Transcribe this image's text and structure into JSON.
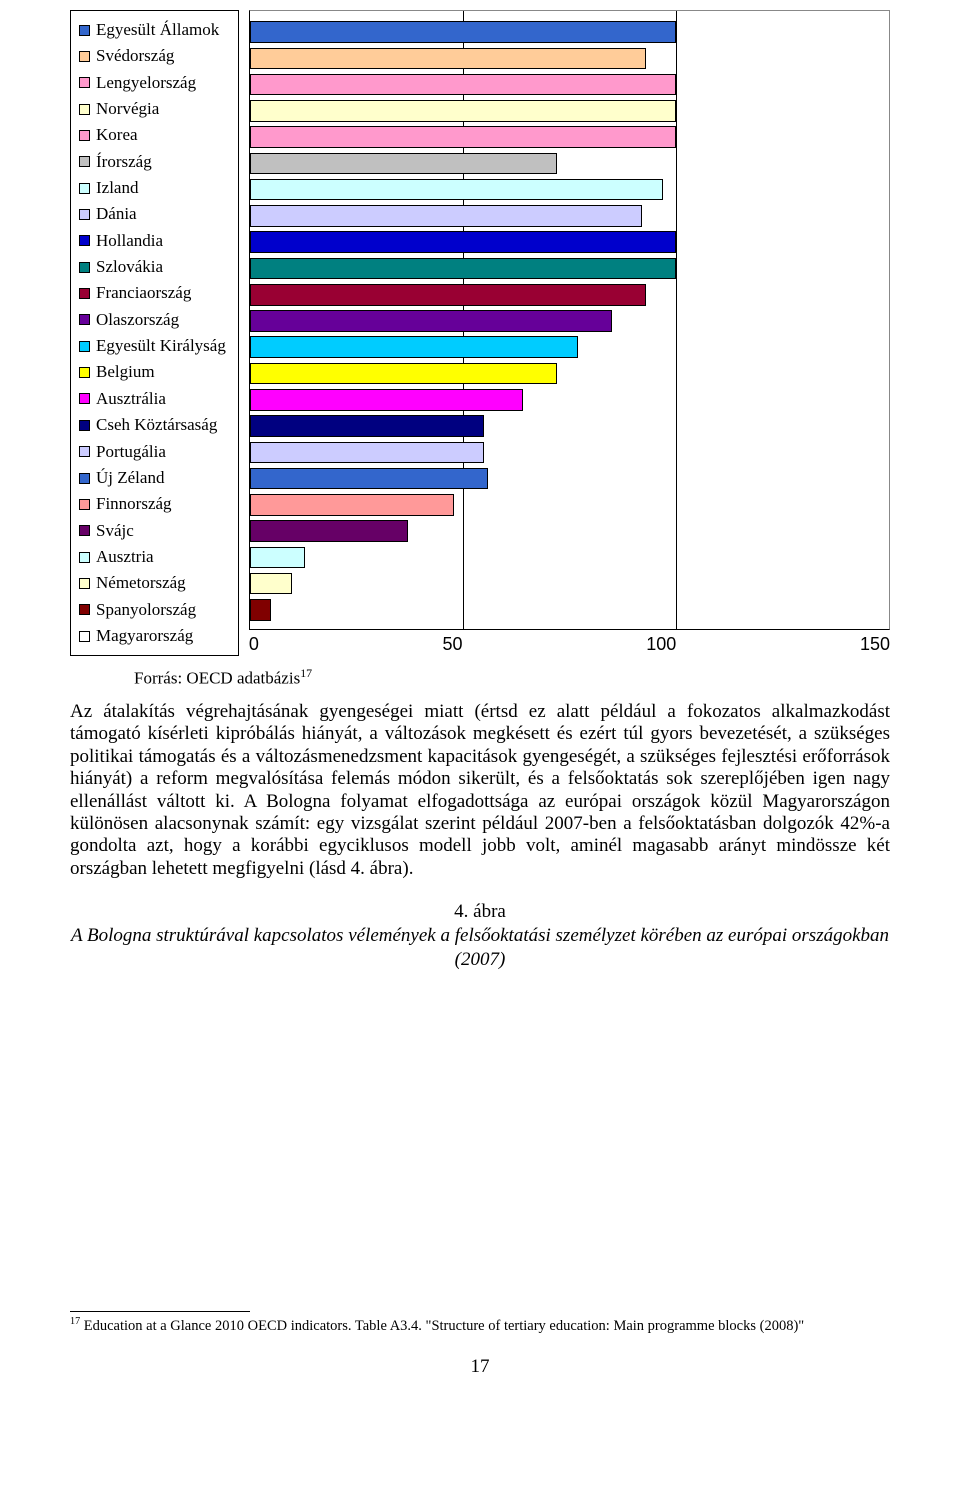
{
  "chart": {
    "type": "bar-horizontal",
    "xmin": 0,
    "xmax": 150,
    "ticks": [
      "0",
      "50",
      "100",
      "150"
    ],
    "grid_color": "#000000",
    "background": "#ffffff",
    "bar_border": "#000000",
    "legend_items": [
      {
        "label": "Egyesült Államok",
        "color": "#3366cc"
      },
      {
        "label": "Svédország",
        "color": "#ffcc99"
      },
      {
        "label": "Lengyelország",
        "color": "#ff99cc"
      },
      {
        "label": "Norvégia",
        "color": "#ffffcc"
      },
      {
        "label": "Korea",
        "color": "#ff99cc"
      },
      {
        "label": "Írország",
        "color": "#c0c0c0"
      },
      {
        "label": "Izland",
        "color": "#ccffff"
      },
      {
        "label": "Dánia",
        "color": "#ccccff"
      },
      {
        "label": "Hollandia",
        "color": "#0000cc"
      },
      {
        "label": "Szlovákia",
        "color": "#008080"
      },
      {
        "label": "Franciaország",
        "color": "#990033"
      },
      {
        "label": "Olaszország",
        "color": "#660099"
      },
      {
        "label": "Egyesült Királyság",
        "color": "#00ccff"
      },
      {
        "label": "Belgium",
        "color": "#ffff00"
      },
      {
        "label": "Ausztrália",
        "color": "#ff00ff"
      },
      {
        "label": "Cseh Köztársaság",
        "color": "#000080"
      },
      {
        "label": "Portugália",
        "color": "#ccccff"
      },
      {
        "label": "Új Zéland",
        "color": "#3366cc"
      },
      {
        "label": "Finnország",
        "color": "#ff9999"
      },
      {
        "label": "Svájc",
        "color": "#660066"
      },
      {
        "label": "Ausztria",
        "color": "#ccffff"
      },
      {
        "label": "Németország",
        "color": "#ffffcc"
      },
      {
        "label": "Spanyolország",
        "color": "#800000"
      },
      {
        "label": "Magyarország",
        "color": null
      }
    ],
    "bars": [
      {
        "value": 100,
        "color": "#3366cc"
      },
      {
        "value": 93,
        "color": "#ffcc99"
      },
      {
        "value": 100,
        "color": "#ff99cc"
      },
      {
        "value": 100,
        "color": "#ffffcc"
      },
      {
        "value": 100,
        "color": "#ff99cc"
      },
      {
        "value": 72,
        "color": "#c0c0c0"
      },
      {
        "value": 97,
        "color": "#ccffff"
      },
      {
        "value": 92,
        "color": "#ccccff"
      },
      {
        "value": 100,
        "color": "#0000cc"
      },
      {
        "value": 100,
        "color": "#008080"
      },
      {
        "value": 93,
        "color": "#990033"
      },
      {
        "value": 85,
        "color": "#660099"
      },
      {
        "value": 77,
        "color": "#00ccff"
      },
      {
        "value": 72,
        "color": "#ffff00"
      },
      {
        "value": 64,
        "color": "#ff00ff"
      },
      {
        "value": 55,
        "color": "#000080"
      },
      {
        "value": 55,
        "color": "#ccccff"
      },
      {
        "value": 56,
        "color": "#3366cc"
      },
      {
        "value": 48,
        "color": "#ff9999"
      },
      {
        "value": 37,
        "color": "#660066"
      },
      {
        "value": 13,
        "color": "#ccffff"
      },
      {
        "value": 10,
        "color": "#ffffcc"
      },
      {
        "value": 5,
        "color": "#800000"
      }
    ]
  },
  "source_label": "Forrás: OECD adatbázis",
  "source_ref": "17",
  "paragraph": "Az átalakítás végrehajtásának gyengeségei miatt (értsd ez alatt például a fokozatos alkalmazkodást támogató kísérleti kipróbálás hiányát, a változások megkésett és ezért túl gyors bevezetését, a szükséges politikai támogatás és a változásmenedzsment kapacitások gyengeségét, a szükséges fejlesztési erőforrások hiányát) a reform megvalósítása felemás módon sikerült, és a felsőoktatás sok szereplőjében igen nagy ellenállást váltott ki. A Bologna folyamat elfogadottsága az európai országok közül Magyarországon különösen alacsonynak számít: egy vizsgálat szerint például 2007-ben a felsőoktatásban dolgozók 42%-a gondolta azt, hogy a korábbi egyciklusos modell jobb volt, aminél magasabb arányt mindössze két országban lehetett megfigyelni (lásd 4. ábra).",
  "caption_num": "4. ábra",
  "caption_text": "A Bologna struktúrával kapcsolatos vélemények a felsőoktatási személyzet körében az európai országokban (2007)",
  "footnote_ref": "17",
  "footnote_text": "Education at a Glance 2010 OECD indicators. Table A3.4. \"Structure of tertiary education: Main programme blocks (2008)\"",
  "page_number": "17"
}
